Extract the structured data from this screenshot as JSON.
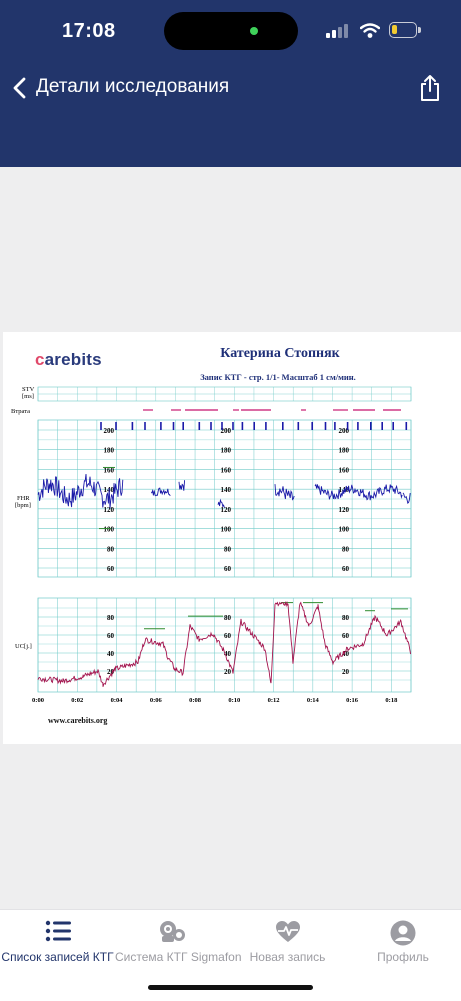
{
  "status_bar": {
    "time": "17:08"
  },
  "header": {
    "back_icon": "chevron-left-icon",
    "title": "Детали исследования",
    "share_icon": "share-icon"
  },
  "report": {
    "logo_text_c": "c",
    "logo_text_rest": "arebits",
    "patient_name": "Катерина  Стопняк",
    "subtitle": "Запис КТГ  - стр. 1/1- Масштаб 1 см/мин.",
    "stv_label_1": "STV",
    "stv_label_2": "[ms]",
    "signal_loss_label": "Втрата",
    "fhr_label_1": "FHR",
    "fhr_label_2": "[bpm]",
    "uc_label": "UC[j.]",
    "fhr_ticks": [
      "200",
      "180",
      "160",
      "140",
      "120",
      "100",
      "80",
      "60"
    ],
    "uc_ticks": [
      "80",
      "60",
      "40",
      "20"
    ],
    "time_ticks": [
      "0:00",
      "0:02",
      "0:04",
      "0:06",
      "0:08",
      "0:10",
      "0:12",
      "0:14",
      "0:16",
      "0:18"
    ],
    "website": "www.carebits.org",
    "colors": {
      "fhr_line": "#1a1aa8",
      "uc_line": "#a3134d",
      "grid": "#6fcac8",
      "marker": "#2e8c2e",
      "loss": "#cf3a86"
    }
  },
  "tabs": [
    {
      "label": "Список записей КТГ",
      "icon": "list-icon",
      "active": true
    },
    {
      "label": "Система КТГ Sigmafon",
      "icon": "device-icon",
      "active": false
    },
    {
      "label": "Новая запись",
      "icon": "heart-pulse-icon",
      "active": false
    },
    {
      "label": "Профиль",
      "icon": "profile-icon",
      "active": false
    }
  ]
}
